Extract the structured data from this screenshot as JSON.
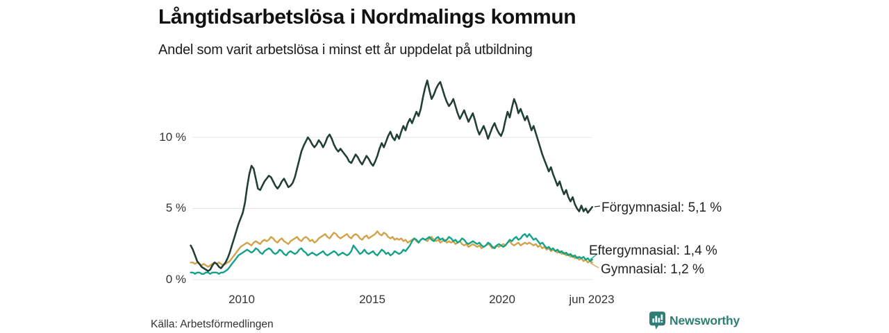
{
  "header": {
    "title": "Långtidsarbetslösa i Nordmalings kommun",
    "subtitle": "Andel som varit arbetslösa i minst ett år uppdelat på utbildning"
  },
  "footer": {
    "source": "Källa: Arbetsförmedlingen",
    "brand": "Newsworthy",
    "brand_color": "#2e7e76"
  },
  "chart_data": {
    "type": "line",
    "title": "Långtidsarbetslösa i Nordmalings kommun",
    "subtitle": "Andel som varit arbetslösa i minst ett år uppdelat på utbildning",
    "unit": "%",
    "frequency": "monthly",
    "x_start": "2008-01",
    "x_end": "2023-06",
    "ylim": [
      0,
      15
    ],
    "grid": true,
    "grid_color": "#e3e3e3",
    "y_ticks": [
      {
        "value": 0,
        "label": "0 %"
      },
      {
        "value": 5,
        "label": "5 %"
      },
      {
        "value": 10,
        "label": "10 %"
      }
    ],
    "x_ticks": [
      {
        "value": 2010,
        "label": "2010"
      },
      {
        "value": 2015,
        "label": "2015"
      },
      {
        "value": 2020,
        "label": "2020"
      },
      {
        "value": 2023.42,
        "label": "jun 2023"
      }
    ],
    "series": [
      {
        "name": "Förgymnasial",
        "color": "#223e36",
        "end_value": 5.1,
        "end_label": "Förgymnasial: 5,1 %",
        "values": [
          2.4,
          2.1,
          1.7,
          1.3,
          1.1,
          0.9,
          0.8,
          0.7,
          0.6,
          0.7,
          1.0,
          1.2,
          1.1,
          0.9,
          0.8,
          1.0,
          1.2,
          1.5,
          1.9,
          2.4,
          2.9,
          3.4,
          3.9,
          4.3,
          4.7,
          5.4,
          6.5,
          7.4,
          8.0,
          7.8,
          7.1,
          6.4,
          6.3,
          6.6,
          6.9,
          7.1,
          7.3,
          7.2,
          6.9,
          6.6,
          6.4,
          6.6,
          6.9,
          7.1,
          6.8,
          6.5,
          6.6,
          6.8,
          7.2,
          7.8,
          8.4,
          9.0,
          9.4,
          9.7,
          10.0,
          9.8,
          9.5,
          9.3,
          9.5,
          9.8,
          9.6,
          9.3,
          9.6,
          10.0,
          10.2,
          9.9,
          9.5,
          9.2,
          9.0,
          9.2,
          9.0,
          8.8,
          8.6,
          8.3,
          8.2,
          8.5,
          8.8,
          8.6,
          8.3,
          8.1,
          8.4,
          8.7,
          8.5,
          8.2,
          8.0,
          8.3,
          8.7,
          9.2,
          9.6,
          9.3,
          9.7,
          10.1,
          10.4,
          10.0,
          9.8,
          10.2,
          9.9,
          10.4,
          10.8,
          10.5,
          11.0,
          11.3,
          11.0,
          11.4,
          11.8,
          11.5,
          12.0,
          12.8,
          13.5,
          14.0,
          13.3,
          12.7,
          13.0,
          13.4,
          13.7,
          13.9,
          13.4,
          12.9,
          12.5,
          12.2,
          12.4,
          12.7,
          12.2,
          11.7,
          11.3,
          11.6,
          11.9,
          11.5,
          11.1,
          11.4,
          11.7,
          11.2,
          10.6,
          10.2,
          10.5,
          10.8,
          10.4,
          9.9,
          10.3,
          10.7,
          11.0,
          10.6,
          10.3,
          10.1,
          10.5,
          11.2,
          11.8,
          11.4,
          12.1,
          12.7,
          12.3,
          11.7,
          12.0,
          11.6,
          11.2,
          11.5,
          11.0,
          10.5,
          10.8,
          10.3,
          9.8,
          9.3,
          8.8,
          8.4,
          8.0,
          7.6,
          7.9,
          7.4,
          7.0,
          6.6,
          6.9,
          6.4,
          6.0,
          6.3,
          5.8,
          5.5,
          5.8,
          5.3,
          5.0,
          4.8,
          5.2,
          4.8,
          5.0,
          4.7,
          4.9,
          5.1
        ]
      },
      {
        "name": "Eftergymnasial",
        "color": "#12a28a",
        "end_value": 1.4,
        "end_label": "Eftergymnasial: 1,4 %",
        "values": [
          0.5,
          0.5,
          0.4,
          0.5,
          0.5,
          0.4,
          0.4,
          0.5,
          0.5,
          0.4,
          0.5,
          0.5,
          0.5,
          0.4,
          0.5,
          0.5,
          0.6,
          0.7,
          0.9,
          1.1,
          1.3,
          1.5,
          1.7,
          1.8,
          1.9,
          2.0,
          2.1,
          2.0,
          1.9,
          2.0,
          2.2,
          2.1,
          1.9,
          1.8,
          2.0,
          2.1,
          2.2,
          2.1,
          1.9,
          1.8,
          1.9,
          2.1,
          2.0,
          1.8,
          1.7,
          1.9,
          2.0,
          1.9,
          1.8,
          1.9,
          2.1,
          2.2,
          2.0,
          1.9,
          1.7,
          1.8,
          1.9,
          1.8,
          1.7,
          1.8,
          1.9,
          2.0,
          1.8,
          1.7,
          1.8,
          1.9,
          2.0,
          1.9,
          1.7,
          1.8,
          1.9,
          1.8,
          1.7,
          1.8,
          2.0,
          2.4,
          2.2,
          2.0,
          1.8,
          1.9,
          2.1,
          1.9,
          1.8,
          1.9,
          2.0,
          1.8,
          1.7,
          1.9,
          2.1,
          2.0,
          1.8,
          1.9,
          1.7,
          1.8,
          2.0,
          1.9,
          1.8,
          1.9,
          2.1,
          2.0,
          2.2,
          2.4,
          2.7,
          2.9,
          2.8,
          2.6,
          2.8,
          2.9,
          2.8,
          2.9,
          3.0,
          2.8,
          2.7,
          2.9,
          3.0,
          2.8,
          2.9,
          2.7,
          2.8,
          3.0,
          2.9,
          2.7,
          2.8,
          2.6,
          2.7,
          2.9,
          2.8,
          2.6,
          2.5,
          2.6,
          2.7,
          2.6,
          2.5,
          2.6,
          2.4,
          2.3,
          2.4,
          2.6,
          2.5,
          2.3,
          2.2,
          2.4,
          2.5,
          2.4,
          2.3,
          2.4,
          2.6,
          2.8,
          2.7,
          2.9,
          3.0,
          2.8,
          2.9,
          3.1,
          3.2,
          3.0,
          3.2,
          3.0,
          2.8,
          2.9,
          2.7,
          2.5,
          2.6,
          2.4,
          2.2,
          2.3,
          2.1,
          2.2,
          2.0,
          2.1,
          1.9,
          2.0,
          1.8,
          1.9,
          1.7,
          1.8,
          1.6,
          1.7,
          1.5,
          1.6,
          1.5,
          1.6,
          1.4,
          1.5,
          1.3,
          1.4
        ]
      },
      {
        "name": "Gymnasial",
        "color": "#d2a148",
        "end_value": 1.2,
        "end_label": "Gymnasial: 1,2 %",
        "values": [
          1.2,
          1.2,
          1.1,
          1.2,
          1.1,
          1.0,
          1.1,
          1.0,
          0.9,
          1.0,
          1.1,
          1.2,
          1.1,
          1.2,
          1.1,
          1.0,
          1.1,
          1.2,
          1.3,
          1.5,
          1.7,
          1.9,
          2.1,
          2.3,
          2.4,
          2.5,
          2.6,
          2.5,
          2.4,
          2.6,
          2.7,
          2.6,
          2.5,
          2.7,
          2.8,
          2.7,
          2.8,
          3.0,
          2.9,
          2.7,
          2.6,
          2.8,
          2.9,
          2.7,
          2.6,
          2.5,
          2.7,
          2.8,
          2.9,
          3.0,
          2.8,
          2.7,
          2.9,
          3.0,
          2.9,
          2.7,
          2.8,
          2.6,
          2.7,
          2.9,
          3.0,
          3.1,
          3.2,
          3.0,
          2.9,
          3.1,
          3.3,
          3.2,
          3.0,
          2.9,
          3.0,
          3.1,
          3.2,
          3.0,
          2.9,
          3.1,
          3.2,
          3.1,
          2.9,
          2.8,
          3.0,
          3.1,
          2.9,
          3.0,
          3.1,
          3.2,
          3.4,
          3.2,
          3.1,
          3.3,
          3.2,
          3.0,
          2.9,
          3.0,
          2.8,
          2.9,
          2.8,
          2.9,
          2.7,
          2.8,
          2.6,
          2.7,
          2.8,
          2.9,
          2.7,
          2.6,
          2.8,
          2.9,
          2.8,
          2.7,
          2.9,
          3.0,
          2.8,
          2.7,
          2.8,
          2.6,
          2.7,
          2.8,
          2.6,
          2.7,
          2.6,
          2.7,
          2.5,
          2.6,
          2.7,
          2.5,
          2.4,
          2.5,
          2.3,
          2.4,
          2.5,
          2.4,
          2.3,
          2.4,
          2.2,
          2.3,
          2.4,
          2.5,
          2.4,
          2.2,
          2.3,
          2.4,
          2.3,
          2.4,
          2.5,
          2.4,
          2.6,
          2.7,
          2.5,
          2.4,
          2.5,
          2.6,
          2.4,
          2.5,
          2.6,
          2.5,
          2.6,
          2.5,
          2.4,
          2.5,
          2.3,
          2.4,
          2.2,
          2.3,
          2.1,
          2.2,
          2.0,
          2.1,
          2.0,
          1.9,
          2.0,
          1.8,
          1.9,
          1.7,
          1.8,
          1.6,
          1.7,
          1.5,
          1.6,
          1.4,
          1.5,
          1.3,
          1.4,
          1.2,
          1.3,
          1.2
        ]
      }
    ]
  }
}
